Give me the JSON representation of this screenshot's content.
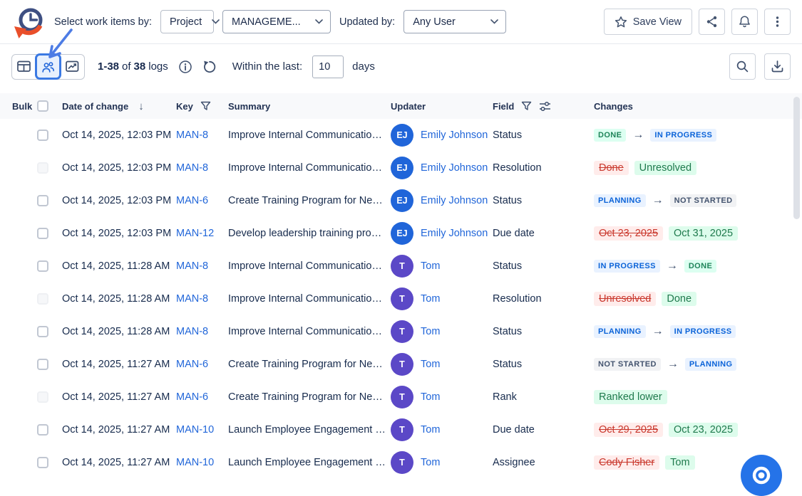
{
  "topbar": {
    "label": "Select work items by:",
    "item_type_select": {
      "value": "Project"
    },
    "project_select": {
      "value": "MANAGEME..."
    },
    "updated_by_label": "Updated by:",
    "user_select": {
      "value": "Any User"
    },
    "save_view_button": "Save View"
  },
  "toolbar": {
    "count_range": "1-38",
    "count_of": "of",
    "count_total": "38",
    "count_unit": "logs",
    "within_label": "Within the last:",
    "within_value": "10",
    "within_unit": "days"
  },
  "table": {
    "headers": {
      "bulk": "Bulk",
      "date": "Date of change",
      "key": "Key",
      "summary": "Summary",
      "updater": "Updater",
      "field": "Field",
      "changes": "Changes"
    },
    "rows": [
      {
        "date": "Oct 14, 2025, 12:03 PM",
        "key": "MAN-8",
        "summary": "Improve Internal Communicatio…",
        "updater": {
          "initials": "EJ",
          "name": "Emily Johnson",
          "color": "blue"
        },
        "checkbox": "normal",
        "field": "Status",
        "change": {
          "kind": "transition",
          "from": {
            "text": "DONE",
            "variant": "green"
          },
          "to": {
            "text": "IN PROGRESS",
            "variant": "blue"
          }
        }
      },
      {
        "date": "Oct 14, 2025, 12:03 PM",
        "key": "MAN-8",
        "summary": "Improve Internal Communicatio…",
        "updater": {
          "initials": "EJ",
          "name": "Emily Johnson",
          "color": "blue"
        },
        "checkbox": "faded",
        "field": "Resolution",
        "change": {
          "kind": "pair",
          "old": "Done",
          "new": "Unresolved"
        }
      },
      {
        "date": "Oct 14, 2025, 12:03 PM",
        "key": "MAN-6",
        "summary": "Create Training Program for Ne…",
        "updater": {
          "initials": "EJ",
          "name": "Emily Johnson",
          "color": "blue"
        },
        "checkbox": "normal",
        "field": "Status",
        "change": {
          "kind": "transition",
          "from": {
            "text": "PLANNING",
            "variant": "blue"
          },
          "to": {
            "text": "NOT STARTED",
            "variant": "gray"
          }
        }
      },
      {
        "date": "Oct 14, 2025, 12:03 PM",
        "key": "MAN-12",
        "summary": "Develop leadership training pro…",
        "updater": {
          "initials": "EJ",
          "name": "Emily Johnson",
          "color": "blue"
        },
        "checkbox": "normal",
        "field": "Due date",
        "change": {
          "kind": "pair",
          "old": "Oct 23, 2025",
          "new": "Oct 31, 2025"
        }
      },
      {
        "date": "Oct 14, 2025, 11:28 AM",
        "key": "MAN-8",
        "summary": "Improve Internal Communicatio…",
        "updater": {
          "initials": "T",
          "name": "Tom",
          "color": "purple"
        },
        "checkbox": "normal",
        "field": "Status",
        "change": {
          "kind": "transition",
          "from": {
            "text": "IN PROGRESS",
            "variant": "blue"
          },
          "to": {
            "text": "DONE",
            "variant": "green"
          }
        }
      },
      {
        "date": "Oct 14, 2025, 11:28 AM",
        "key": "MAN-8",
        "summary": "Improve Internal Communicatio…",
        "updater": {
          "initials": "T",
          "name": "Tom",
          "color": "purple"
        },
        "checkbox": "faded",
        "field": "Resolution",
        "change": {
          "kind": "pair",
          "old": "Unresolved",
          "new": "Done"
        }
      },
      {
        "date": "Oct 14, 2025, 11:28 AM",
        "key": "MAN-8",
        "summary": "Improve Internal Communicatio…",
        "updater": {
          "initials": "T",
          "name": "Tom",
          "color": "purple"
        },
        "checkbox": "normal",
        "field": "Status",
        "change": {
          "kind": "transition",
          "from": {
            "text": "PLANNING",
            "variant": "blue"
          },
          "to": {
            "text": "IN PROGRESS",
            "variant": "blue"
          }
        }
      },
      {
        "date": "Oct 14, 2025, 11:27 AM",
        "key": "MAN-6",
        "summary": "Create Training Program for Ne…",
        "updater": {
          "initials": "T",
          "name": "Tom",
          "color": "purple"
        },
        "checkbox": "normal",
        "field": "Status",
        "change": {
          "kind": "transition",
          "from": {
            "text": "NOT STARTED",
            "variant": "gray"
          },
          "to": {
            "text": "PLANNING",
            "variant": "blue"
          }
        }
      },
      {
        "date": "Oct 14, 2025, 11:27 AM",
        "key": "MAN-6",
        "summary": "Create Training Program for Ne…",
        "updater": {
          "initials": "T",
          "name": "Tom",
          "color": "purple"
        },
        "checkbox": "faded",
        "field": "Rank",
        "change": {
          "kind": "single",
          "value": "Ranked lower"
        }
      },
      {
        "date": "Oct 14, 2025, 11:27 AM",
        "key": "MAN-10",
        "summary": "Launch Employee Engagement …",
        "updater": {
          "initials": "T",
          "name": "Tom",
          "color": "purple"
        },
        "checkbox": "normal",
        "field": "Due date",
        "change": {
          "kind": "pair",
          "old": "Oct 29, 2025",
          "new": "Oct 23, 2025"
        }
      },
      {
        "date": "Oct 14, 2025, 11:27 AM",
        "key": "MAN-10",
        "summary": "Launch Employee Engagement …",
        "updater": {
          "initials": "T",
          "name": "Tom",
          "color": "purple"
        },
        "checkbox": "normal",
        "field": "Assignee",
        "change": {
          "kind": "pair",
          "old": "Cody Fisher",
          "new": "Tom"
        }
      }
    ]
  },
  "colors": {
    "accent_blue": "#2065d9",
    "link_blue": "#2166d9",
    "avatar_blue": "#2065d9",
    "avatar_purple": "#5b48c7",
    "lozenge_green_bg": "#dcfff1",
    "lozenge_green_text": "#1f845a",
    "lozenge_blue_bg": "#e9f2ff",
    "lozenge_blue_text": "#0b63d8",
    "lozenge_gray_bg": "#f1f2f4",
    "lozenge_gray_text": "#44546f",
    "removed_bg": "#ffeceb",
    "removed_text": "#c9372c",
    "added_bg": "#ddfcec",
    "added_text": "#1f7a4d",
    "fab_blue": "#2573e8",
    "selected_toggle_border": "#3a79e3",
    "logo_orange": "#e94f2a",
    "logo_navy": "#3e4f82"
  }
}
